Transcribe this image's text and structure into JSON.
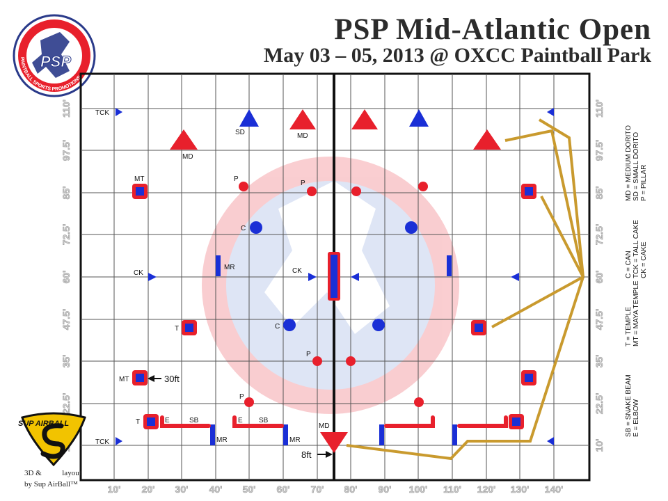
{
  "header": {
    "title": "PSP Mid-Atlantic Open",
    "subtitle": "May 03 – 05, 2013 @ OXCC Paintball Park"
  },
  "logos": {
    "psp_arc_text": "PAINTBALL SPORTS PROMOTIONS",
    "psp_initials": "PSP",
    "sup_brand": "SUP AIRBALL",
    "sup_line1_a": "3D &",
    "sup_line1_b": "layout",
    "sup_line2": "by Sup AirBall™"
  },
  "axes": {
    "x_labels": [
      "10'",
      "20'",
      "30'",
      "40'",
      "50'",
      "60'",
      "70'",
      "80'",
      "90'",
      "100'",
      "110'",
      "120'",
      "130'",
      "140'"
    ],
    "y_labels_left": [
      "10'",
      "22.5'",
      "35'",
      "47.5'",
      "60'",
      "72.5'",
      "85'",
      "97.5'",
      "110'"
    ],
    "y_labels_right": [
      "10'",
      "22.5'",
      "35'",
      "47.5'",
      "60'",
      "72.5'",
      "85'",
      "97.5'",
      "110'"
    ]
  },
  "bunker_labels": {
    "tck": "TCK",
    "sd": "SD",
    "md": "MD",
    "mt": "MT",
    "p": "P",
    "c": "C",
    "ck": "CK",
    "mr": "MR",
    "t": "T",
    "e": "E",
    "sb": "SB"
  },
  "annotations": {
    "dist_30": "30ft",
    "dist_8": "8ft"
  },
  "legend": [
    [
      "MD = MEDIUM DORITO",
      "SD = SMALL DORITO",
      "P = PILLAR"
    ],
    [
      "C = CAN",
      "TCK = TALL CAKE",
      "CK = CAKE"
    ],
    [
      "T = TEMPLE",
      "MT = MAYA TEMPLE"
    ],
    [
      "SB = SNAKE BEAM",
      "E = ELBOW"
    ]
  ],
  "colors": {
    "red": "#e8202c",
    "blue": "#1a2fd6",
    "gold": "#c99a2e",
    "grid": "#555555"
  }
}
